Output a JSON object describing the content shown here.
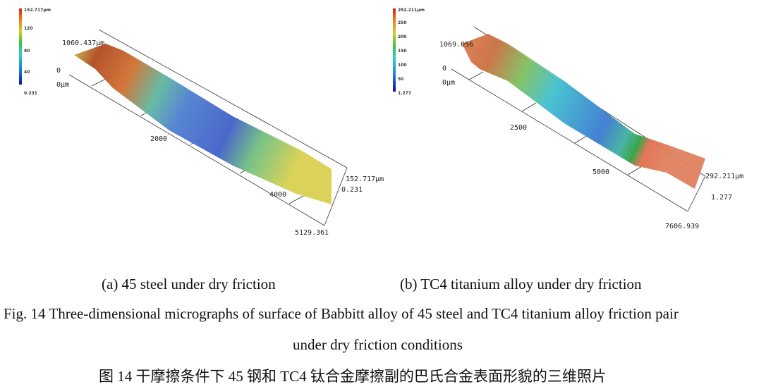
{
  "figure": {
    "panel_a": {
      "colorbar": [
        "152.717μm",
        "120",
        "80",
        "40",
        "0.231"
      ],
      "axis_labels": {
        "y_extent": "1060.437μm",
        "zero": "0",
        "origin": "0μm",
        "x_mid": "2000",
        "x_mid2": "4000",
        "z_max": "152.717μm",
        "z_min": "0.231",
        "x_max": "5129.361"
      },
      "caption": "(a) 45 steel under dry friction"
    },
    "panel_b": {
      "colorbar": [
        "292.211μm",
        "250",
        "200",
        "150",
        "100",
        "50",
        "1.277"
      ],
      "axis_labels": {
        "y_extent": "1069.056",
        "zero": "0",
        "origin": "0μm",
        "x_mid": "2500",
        "x_mid2": "5000",
        "z_max": "292.211μm",
        "z_min": "1.277",
        "x_max": "7606.939"
      },
      "caption": "(b) TC4 titanium alloy under dry friction"
    },
    "caption_en_line1": "Fig. 14 Three-dimensional micrographs of surface of Babbitt alloy of 45 steel and TC4 titanium alloy friction pair",
    "caption_en_line2": "under dry friction conditions",
    "caption_zh": "图 14  干摩擦条件下 45 钢和 TC4 钛合金摩擦副的巴氏合金表面形貌的三维照片",
    "colors": {
      "low": "#1f3fd0",
      "mid": "#3cc070",
      "high": "#e03010"
    }
  }
}
